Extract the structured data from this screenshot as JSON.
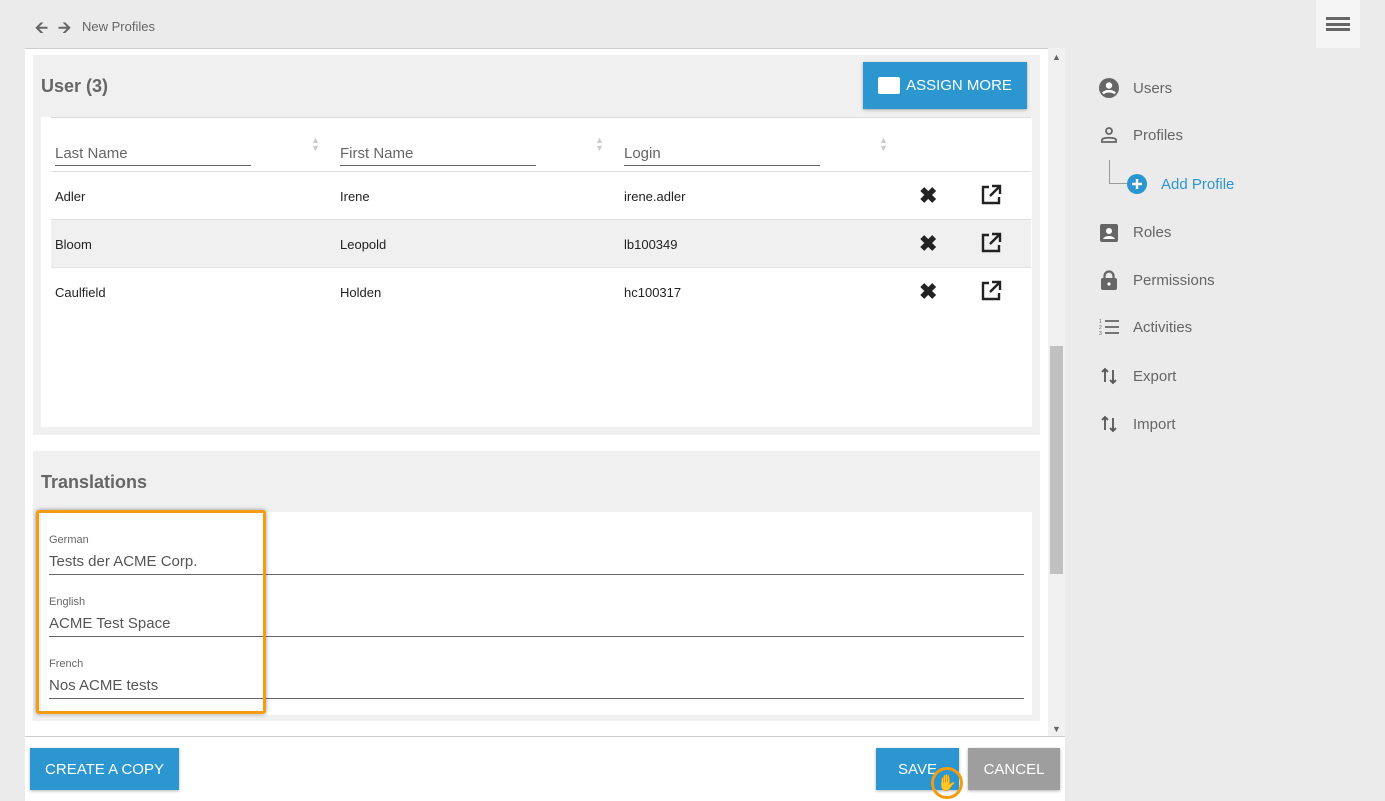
{
  "header": {
    "breadcrumb": "New Profiles",
    "back_icon": "arrow-left-icon",
    "forward_icon": "arrow-right-icon",
    "menu_icon": "hamburger-icon"
  },
  "users": {
    "title": "User (3)",
    "assign_more": "ASSIGN MORE",
    "columns": [
      "Last Name",
      "First Name",
      "Login"
    ],
    "rows": [
      [
        "Adler",
        "Irene",
        "irene.adler"
      ],
      [
        "Bloom",
        "Leopold",
        "lb100349"
      ],
      [
        "Caulfield",
        "Holden",
        "hc100317"
      ]
    ]
  },
  "translations": {
    "title": "Translations",
    "fields": [
      {
        "label": "German",
        "value": "Tests der ACME Corp."
      },
      {
        "label": "English",
        "value": "ACME Test Space"
      },
      {
        "label": "French",
        "value": "Nos ACME tests"
      }
    ]
  },
  "footer": {
    "create_copy": "CREATE A COPY",
    "save": "SAVE",
    "cancel": "CANCEL"
  },
  "sidebar": {
    "items": [
      {
        "label": "Users",
        "icon": "user-circle-icon"
      },
      {
        "label": "Profiles",
        "icon": "person-outline-icon"
      },
      {
        "label": "Add Profile",
        "icon": "plus-circle-icon"
      },
      {
        "label": "Roles",
        "icon": "badge-icon"
      },
      {
        "label": "Permissions",
        "icon": "lock-icon"
      },
      {
        "label": "Activities",
        "icon": "numbered-list-icon"
      },
      {
        "label": "Export",
        "icon": "swap-vertical-icon"
      },
      {
        "label": "Import",
        "icon": "swap-vertical-icon"
      }
    ]
  },
  "colors": {
    "accent": "#2b96cf",
    "highlight": "#f39c12",
    "cancel": "#9e9e9e"
  }
}
